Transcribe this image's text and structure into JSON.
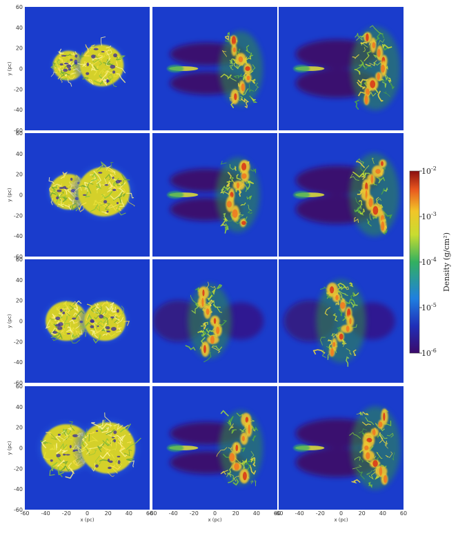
{
  "chart_data": {
    "type": "heatmap",
    "layout": {
      "rows": 4,
      "cols": 3
    },
    "x_axis": {
      "label": "x (pc)",
      "ticks": [
        -60,
        -40,
        -20,
        0,
        20,
        40,
        60
      ],
      "range": [
        -60,
        60
      ]
    },
    "y_axis": {
      "label": "y (pc)",
      "ticks": [
        60,
        40,
        20,
        0,
        -20,
        -40,
        -60
      ],
      "range": [
        -60,
        60
      ]
    },
    "colorbar": {
      "label": "Density (g/cm²)",
      "scale": "log",
      "range": [
        1e-06,
        0.01
      ],
      "ticks": [
        {
          "base": "10",
          "exp": "-2"
        },
        {
          "base": "10",
          "exp": "-3"
        },
        {
          "base": "10",
          "exp": "-4"
        },
        {
          "base": "10",
          "exp": "-5"
        },
        {
          "base": "10",
          "exp": "-6"
        }
      ],
      "colors": [
        "#3b0a6a",
        "#1f2fb8",
        "#1f7fe0",
        "#32b060",
        "#c8dc30",
        "#f2c528",
        "#e8561e",
        "#8a0f10"
      ]
    },
    "background_color": "#1a3ccc",
    "panels": [
      {
        "row": 0,
        "col": 0,
        "stage": "pre-collision",
        "clouds": [
          {
            "cx": -18,
            "cy": 3,
            "r": 15
          },
          {
            "cx": 14,
            "cy": 3,
            "r": 21
          }
        ]
      },
      {
        "row": 0,
        "col": 1,
        "stage": "compressed-layer",
        "layer_x": 25
      },
      {
        "row": 0,
        "col": 2,
        "stage": "late",
        "layer_x": 33
      },
      {
        "row": 1,
        "col": 0,
        "stage": "pre-collision",
        "clouds": [
          {
            "cx": -18,
            "cy": 3,
            "r": 18
          },
          {
            "cx": 16,
            "cy": 3,
            "r": 25
          }
        ]
      },
      {
        "row": 1,
        "col": 1,
        "stage": "compressed-layer",
        "layer_x": 22
      },
      {
        "row": 1,
        "col": 2,
        "stage": "late",
        "layer_x": 32
      },
      {
        "row": 2,
        "col": 0,
        "stage": "pre-collision",
        "clouds": [
          {
            "cx": -20,
            "cy": 0,
            "r": 20
          },
          {
            "cx": 17,
            "cy": 0,
            "r": 20
          }
        ]
      },
      {
        "row": 2,
        "col": 1,
        "stage": "compressed-layer",
        "layer_x": -5
      },
      {
        "row": 2,
        "col": 2,
        "stage": "late",
        "layer_x": 0
      },
      {
        "row": 3,
        "col": 0,
        "stage": "pre-collision",
        "clouds": [
          {
            "cx": -20,
            "cy": 0,
            "r": 24
          },
          {
            "cx": 20,
            "cy": 0,
            "r": 26
          }
        ]
      },
      {
        "row": 3,
        "col": 1,
        "stage": "compressed-layer",
        "layer_x": 25
      },
      {
        "row": 3,
        "col": 2,
        "stage": "late",
        "layer_x": 33
      }
    ]
  }
}
